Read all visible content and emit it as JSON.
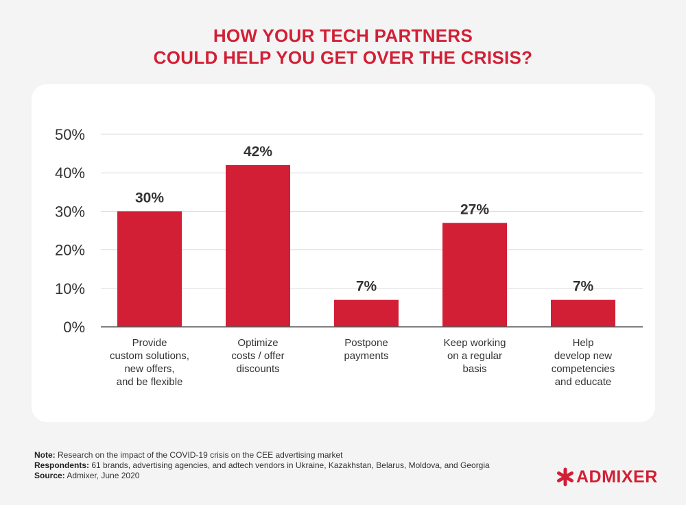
{
  "title": {
    "line1": "HOW YOUR TECH PARTNERS",
    "line2": "COULD HELP YOU GET OVER THE CRISIS?"
  },
  "chart_data": {
    "type": "bar",
    "categories": [
      [
        "Provide",
        "custom solutions,",
        "new offers,",
        "and be flexible"
      ],
      [
        "Optimize",
        "costs / offer",
        "discounts"
      ],
      [
        "Postpone",
        "payments"
      ],
      [
        "Keep working",
        "on a regular",
        "basis"
      ],
      [
        "Help",
        "develop new",
        "competencies",
        "and educate"
      ]
    ],
    "values": [
      30,
      42,
      7,
      27,
      7
    ],
    "value_labels": [
      "30%",
      "42%",
      "7%",
      "27%",
      "7%"
    ],
    "ylim": [
      0,
      50
    ],
    "yticks": [
      "0%",
      "10%",
      "20%",
      "30%",
      "40%",
      "50%"
    ],
    "grid": true,
    "bar_color": "#d21f35"
  },
  "notes": {
    "note_label": "Note:",
    "note_text": " Research on the impact of the COVID-19 crisis on the CEE advertising market",
    "respondents_label": "Respondents:",
    "respondents_text": " 61 brands, advertising agencies, and adtech vendors in Ukraine, Kazakhstan, Belarus, Moldova, and Georgia",
    "source_label": "Source:",
    "source_text": " Admixer, June 2020"
  },
  "logo": {
    "text": "ADMIXER",
    "icon": "asterisk-icon",
    "color": "#d21f35"
  }
}
